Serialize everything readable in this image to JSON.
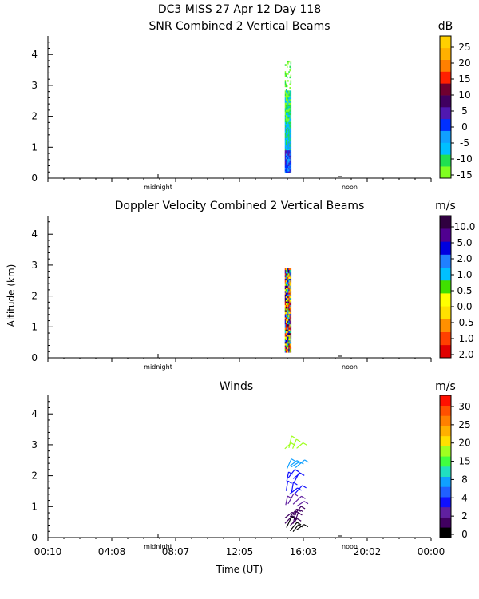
{
  "header": {
    "line1": "DC3 MISS  27 Apr 12 Day 118",
    "line2": "SNR Combined 2 Vertical Beams"
  },
  "panels": {
    "doppler_title": "Doppler Velocity Combined 2 Vertical Beams",
    "winds_title": "Winds"
  },
  "axes": {
    "ylabel": "Altitude (km)",
    "xlabel": "Time (UT)",
    "x_ticks": [
      "00:10",
      "04:08",
      "08:07",
      "12:05",
      "16:03",
      "20:02",
      "00:00"
    ],
    "y_ticks": [
      "0",
      "1",
      "2",
      "3",
      "4"
    ],
    "midnight_label": "midnight",
    "noon_label": "noon"
  },
  "colors": {
    "snr": [
      "#80ff20",
      "#20e050",
      "#00c0ff",
      "#10a0ff",
      "#0030ff",
      "#5018b0",
      "#400060",
      "#700030",
      "#ff2000",
      "#ff8000",
      "#ffb000",
      "#ffd000"
    ],
    "doppler": [
      "#e00000",
      "#ff4000",
      "#ff9000",
      "#ffe000",
      "#ffff00",
      "#40e000",
      "#00c0ff",
      "#2080ff",
      "#0000e0",
      "#500090",
      "#300040"
    ],
    "winds": [
      "#000000",
      "#400060",
      "#6020a0",
      "#1010ff",
      "#2060ff",
      "#10a0ff",
      "#20e0c0",
      "#40ff40",
      "#a0ff20",
      "#ffe000",
      "#ffb000",
      "#ff8000",
      "#ff5000",
      "#ff1000"
    ]
  },
  "chart_data": [
    {
      "type": "heatmap",
      "name": "snr",
      "title": "SNR Combined 2 Vertical Beams",
      "unit": "dB",
      "colorbar_ticks": [
        "25",
        "20",
        "15",
        "10",
        "5",
        "0",
        "-5",
        "-10",
        "-15"
      ],
      "colorbar_range": [
        -17,
        29
      ],
      "xlim_hours": [
        0.1667,
        24.0
      ],
      "ylim_km": [
        0,
        4.6
      ],
      "data_time_range_hours": [
        14.9,
        15.3
      ],
      "data_alt_range_km": [
        0.2,
        3.8
      ]
    },
    {
      "type": "heatmap",
      "name": "doppler",
      "title": "Doppler Velocity Combined 2 Vertical Beams",
      "unit": "m/s",
      "colorbar_ticks": [
        "10.0",
        "5.0",
        "2.0",
        "1.0",
        "0.5",
        "0.0",
        "-0.5",
        "-1.0",
        "-2.0"
      ],
      "xlim_hours": [
        0.1667,
        24.0
      ],
      "ylim_km": [
        0,
        4.6
      ],
      "data_time_range_hours": [
        14.9,
        15.3
      ],
      "data_alt_range_km": [
        0.2,
        2.9
      ]
    },
    {
      "type": "scatter",
      "name": "winds",
      "title": "Winds",
      "unit": "m/s",
      "colorbar_ticks": [
        "30",
        "25",
        "20",
        "15",
        "8",
        "4",
        "2",
        "0"
      ],
      "xlim_hours": [
        0.1667,
        24.0
      ],
      "ylim_km": [
        0,
        4.6
      ],
      "barbs": [
        {
          "t": 14.9,
          "alt": 2.85,
          "speed": 18
        },
        {
          "t": 14.9,
          "alt": 2.3,
          "speed": 12
        },
        {
          "t": 14.9,
          "alt": 1.85,
          "speed": 6
        },
        {
          "t": 14.9,
          "alt": 1.45,
          "speed": 6
        },
        {
          "t": 14.9,
          "alt": 1.05,
          "speed": 4
        },
        {
          "t": 14.9,
          "alt": 0.7,
          "speed": 3
        },
        {
          "t": 14.9,
          "alt": 0.45,
          "speed": 2
        },
        {
          "t": 14.9,
          "alt": 0.25,
          "speed": 1
        }
      ]
    }
  ]
}
